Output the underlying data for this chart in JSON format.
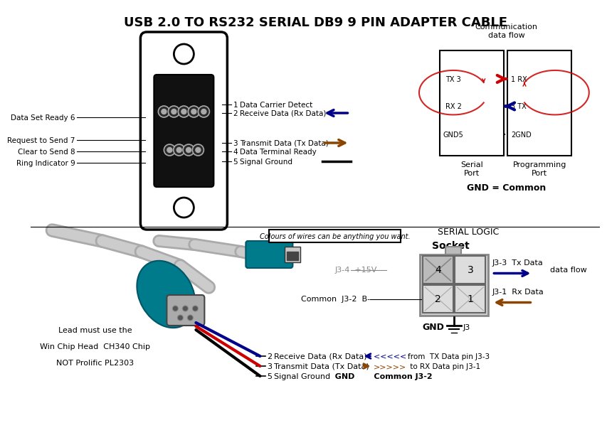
{
  "title": "USB 2.0 TO RS232 SERIAL DB9 9 PIN ADAPTER CABLE",
  "bg_color": "#ffffff",
  "title_fontsize": 13,
  "colors": {
    "red": "#CC0000",
    "blue": "#00008B",
    "dark_red": "#8B4500",
    "black": "#000000",
    "gray": "#888888",
    "light_gray": "#cccccc",
    "teal": "#007B8B",
    "dark_gray": "#555555",
    "pin_bg": "#111111",
    "pin_hole": "#aaaaaa"
  },
  "db9_pin_right": [
    {
      "num": "1",
      "text": "Data Carrier Detect"
    },
    {
      "num": "2",
      "text": "Receive Data (Rx Data)"
    },
    {
      "num": "3",
      "text": "Transmit Data (Tx Data)"
    },
    {
      "num": "4",
      "text": "Data Terminal Ready"
    },
    {
      "num": "5",
      "text": "Signal Ground"
    }
  ],
  "db9_pin_left": [
    {
      "text": "Data Set Ready 6"
    },
    {
      "text": "Request to Send 7"
    },
    {
      "text": "Clear to Send 8"
    },
    {
      "text": "Ring Indicator 9"
    }
  ],
  "bottom_rows": [
    {
      "num": "2",
      "text": "Receive Data (Rx Data)",
      "arrow": "left",
      "arrow_chars": "<<<<< ",
      "extra": "from  TX Data pin J3-3"
    },
    {
      "num": "3",
      "text": "Transmit Data (Tx Data)",
      "arrow": "right",
      "arrow_chars": ">>>>>",
      "extra": " to RX Data pin J3-1"
    },
    {
      "num": "5",
      "text": "Signal Ground",
      "arrow": "none",
      "arrow_chars": "",
      "extra": "  GND       Common J3-2"
    }
  ],
  "comm_serial_labels": [
    "TX 3",
    "RX 2",
    "GND5"
  ],
  "comm_prog_labels": [
    "1 RX",
    "3 TX",
    "2GND"
  ]
}
